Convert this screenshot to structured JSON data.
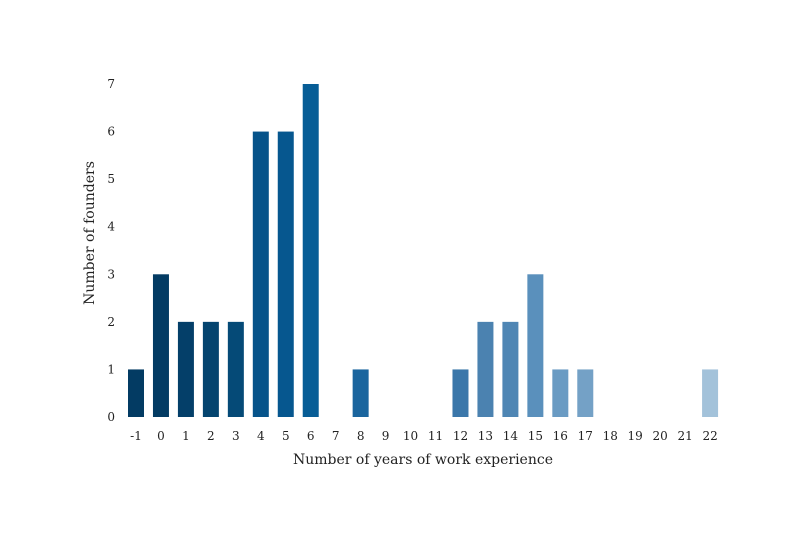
{
  "chart_data": {
    "type": "bar",
    "title": "",
    "xlabel": "Number of years of work experience",
    "ylabel": "Number of founders",
    "categories": [
      "-1",
      "0",
      "1",
      "2",
      "3",
      "4",
      "5",
      "6",
      "7",
      "8",
      "9",
      "10",
      "11",
      "12",
      "13",
      "14",
      "15",
      "16",
      "17",
      "18",
      "19",
      "20",
      "21",
      "22"
    ],
    "values": [
      1,
      3,
      2,
      2,
      2,
      6,
      6,
      7,
      0,
      1,
      0,
      0,
      0,
      1,
      2,
      2,
      3,
      1,
      1,
      0,
      0,
      0,
      0,
      1
    ],
    "ylim": [
      0,
      7
    ],
    "yticks": [
      0,
      1,
      2,
      3,
      4,
      5,
      6,
      7
    ],
    "grid": false,
    "colors": [
      "#033b63",
      "#033b63",
      "#043f69",
      "#04446f",
      "#054a77",
      "#06538a",
      "#06578f",
      "#075d96",
      "#1a659e",
      "#1a659e",
      "#276ea6",
      "#306fa5",
      "#3a76a8",
      "#3b77aa",
      "#4b82b0",
      "#4f86b4",
      "#5a90bc",
      "#6a9bc3",
      "#74a1c6",
      "#80a9cb",
      "#8bb2d0",
      "#95b8d4",
      "#9cbcd6",
      "#a3c2da"
    ]
  }
}
